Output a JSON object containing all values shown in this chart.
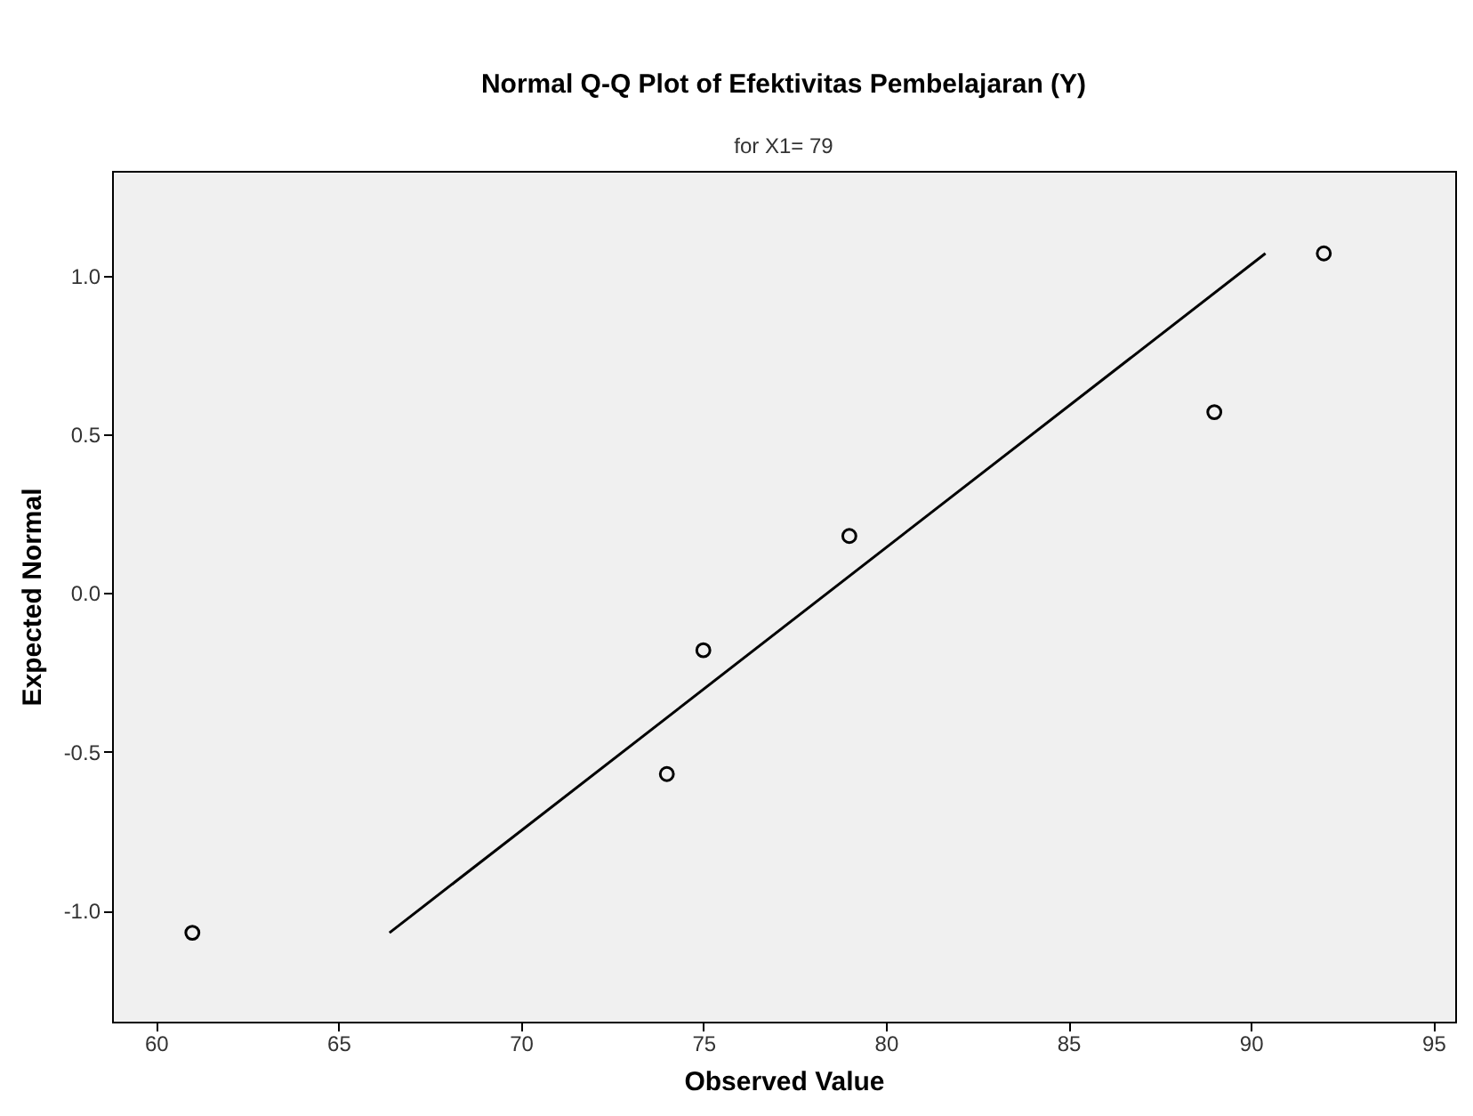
{
  "chart_data": {
    "type": "scatter",
    "title": "Normal Q-Q Plot of Efektivitas Pembelajaran (Y)",
    "subtitle": "for X1= 79",
    "xlabel": "Observed Value",
    "ylabel": "Expected Normal",
    "series": [
      {
        "color": "#000000",
        "marker": "circle",
        "x": [
          61,
          74,
          75,
          79,
          89,
          92
        ],
        "values": [
          -1.07,
          -0.57,
          -0.18,
          0.18,
          0.57,
          1.07
        ]
      },
      {
        "type": "line",
        "color": "#000000",
        "line_style": "solid",
        "x": [
          66.4,
          90.4
        ],
        "values": [
          -1.07,
          1.07
        ]
      }
    ],
    "xlim": [
      58.8,
      95.6
    ],
    "xticks": [
      60,
      65,
      70,
      75,
      80,
      85,
      90,
      95
    ],
    "ylim": [
      -1.35,
      1.33
    ],
    "yticks": [
      {
        "value": -1.0,
        "label": "-1.0"
      },
      {
        "value": -0.5,
        "label": "-0.5"
      },
      {
        "value": 0.0,
        "label": "0.0"
      },
      {
        "value": 0.5,
        "label": "0.5"
      },
      {
        "value": 1.0,
        "label": "1.0"
      }
    ],
    "grid": false
  }
}
